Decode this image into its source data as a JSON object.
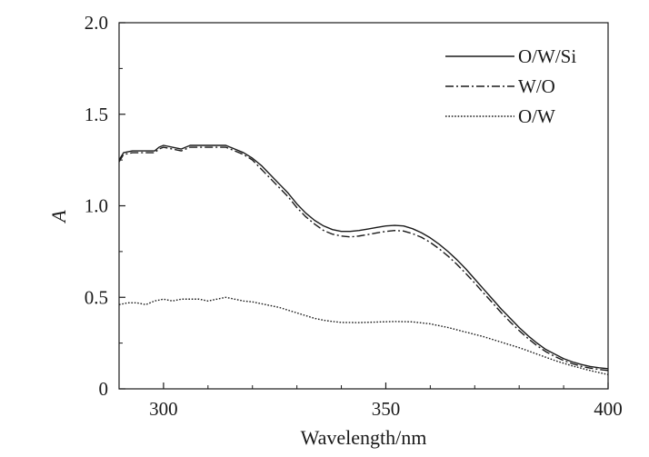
{
  "chart_data": {
    "type": "line",
    "title": "",
    "xlabel": "Wavelength/nm",
    "ylabel": "A",
    "xlim": [
      290,
      400
    ],
    "ylim": [
      0,
      2.0
    ],
    "xticks": [
      300,
      350,
      400
    ],
    "xtick_labels": [
      "300",
      "350",
      "400"
    ],
    "yticks": [
      0,
      0.5,
      1.0,
      1.5,
      2.0
    ],
    "ytick_labels": [
      "0",
      "0.5",
      "1.0",
      "1.5",
      "2.0"
    ],
    "grid": false,
    "legend_position": "top-right",
    "series": [
      {
        "name": "O/W/Si",
        "color": "#1a1a1a",
        "dash": "solid",
        "points": [
          [
            290,
            1.25
          ],
          [
            291,
            1.29
          ],
          [
            293,
            1.3
          ],
          [
            296,
            1.3
          ],
          [
            298,
            1.3
          ],
          [
            299,
            1.32
          ],
          [
            300,
            1.33
          ],
          [
            302,
            1.32
          ],
          [
            304,
            1.31
          ],
          [
            306,
            1.33
          ],
          [
            308,
            1.33
          ],
          [
            310,
            1.33
          ],
          [
            312,
            1.33
          ],
          [
            314,
            1.33
          ],
          [
            316,
            1.31
          ],
          [
            318,
            1.29
          ],
          [
            320,
            1.26
          ],
          [
            322,
            1.22
          ],
          [
            324,
            1.17
          ],
          [
            326,
            1.12
          ],
          [
            328,
            1.07
          ],
          [
            330,
            1.01
          ],
          [
            332,
            0.96
          ],
          [
            334,
            0.92
          ],
          [
            336,
            0.89
          ],
          [
            338,
            0.87
          ],
          [
            340,
            0.86
          ],
          [
            342,
            0.86
          ],
          [
            344,
            0.865
          ],
          [
            346,
            0.873
          ],
          [
            348,
            0.882
          ],
          [
            350,
            0.89
          ],
          [
            352,
            0.893
          ],
          [
            354,
            0.89
          ],
          [
            356,
            0.875
          ],
          [
            358,
            0.853
          ],
          [
            360,
            0.825
          ],
          [
            362,
            0.79
          ],
          [
            364,
            0.75
          ],
          [
            366,
            0.705
          ],
          [
            368,
            0.655
          ],
          [
            370,
            0.6
          ],
          [
            372,
            0.545
          ],
          [
            374,
            0.49
          ],
          [
            376,
            0.435
          ],
          [
            378,
            0.385
          ],
          [
            380,
            0.335
          ],
          [
            382,
            0.29
          ],
          [
            384,
            0.25
          ],
          [
            386,
            0.215
          ],
          [
            388,
            0.19
          ],
          [
            390,
            0.165
          ],
          [
            392,
            0.147
          ],
          [
            394,
            0.133
          ],
          [
            396,
            0.122
          ],
          [
            398,
            0.115
          ],
          [
            400,
            0.11
          ]
        ]
      },
      {
        "name": "W/O",
        "color": "#1a1a1a",
        "dash": "dashdot",
        "points": [
          [
            290,
            1.24
          ],
          [
            291,
            1.28
          ],
          [
            293,
            1.29
          ],
          [
            296,
            1.29
          ],
          [
            298,
            1.29
          ],
          [
            299,
            1.31
          ],
          [
            300,
            1.32
          ],
          [
            302,
            1.31
          ],
          [
            304,
            1.3
          ],
          [
            306,
            1.32
          ],
          [
            308,
            1.32
          ],
          [
            310,
            1.32
          ],
          [
            312,
            1.32
          ],
          [
            314,
            1.32
          ],
          [
            316,
            1.3
          ],
          [
            318,
            1.28
          ],
          [
            320,
            1.25
          ],
          [
            322,
            1.2
          ],
          [
            324,
            1.15
          ],
          [
            326,
            1.1
          ],
          [
            328,
            1.05
          ],
          [
            330,
            0.99
          ],
          [
            332,
            0.94
          ],
          [
            334,
            0.9
          ],
          [
            336,
            0.865
          ],
          [
            338,
            0.845
          ],
          [
            340,
            0.835
          ],
          [
            342,
            0.83
          ],
          [
            344,
            0.835
          ],
          [
            346,
            0.843
          ],
          [
            348,
            0.852
          ],
          [
            350,
            0.86
          ],
          [
            352,
            0.865
          ],
          [
            354,
            0.862
          ],
          [
            356,
            0.848
          ],
          [
            358,
            0.828
          ],
          [
            360,
            0.8
          ],
          [
            362,
            0.765
          ],
          [
            364,
            0.725
          ],
          [
            366,
            0.68
          ],
          [
            368,
            0.63
          ],
          [
            370,
            0.578
          ],
          [
            372,
            0.523
          ],
          [
            374,
            0.47
          ],
          [
            376,
            0.415
          ],
          [
            378,
            0.365
          ],
          [
            380,
            0.318
          ],
          [
            382,
            0.275
          ],
          [
            384,
            0.236
          ],
          [
            386,
            0.203
          ],
          [
            388,
            0.177
          ],
          [
            390,
            0.155
          ],
          [
            392,
            0.137
          ],
          [
            394,
            0.123
          ],
          [
            396,
            0.113
          ],
          [
            398,
            0.106
          ],
          [
            400,
            0.1
          ]
        ]
      },
      {
        "name": "O/W",
        "color": "#1a1a1a",
        "dash": "dotted",
        "points": [
          [
            290,
            0.46
          ],
          [
            292,
            0.47
          ],
          [
            294,
            0.47
          ],
          [
            296,
            0.46
          ],
          [
            298,
            0.48
          ],
          [
            300,
            0.49
          ],
          [
            302,
            0.48
          ],
          [
            304,
            0.49
          ],
          [
            306,
            0.49
          ],
          [
            308,
            0.49
          ],
          [
            310,
            0.48
          ],
          [
            312,
            0.49
          ],
          [
            314,
            0.5
          ],
          [
            316,
            0.49
          ],
          [
            318,
            0.48
          ],
          [
            320,
            0.475
          ],
          [
            322,
            0.465
          ],
          [
            324,
            0.455
          ],
          [
            326,
            0.445
          ],
          [
            328,
            0.43
          ],
          [
            330,
            0.415
          ],
          [
            332,
            0.4
          ],
          [
            334,
            0.385
          ],
          [
            336,
            0.375
          ],
          [
            338,
            0.368
          ],
          [
            340,
            0.363
          ],
          [
            344,
            0.362
          ],
          [
            348,
            0.365
          ],
          [
            352,
            0.368
          ],
          [
            356,
            0.366
          ],
          [
            360,
            0.355
          ],
          [
            364,
            0.335
          ],
          [
            368,
            0.31
          ],
          [
            372,
            0.285
          ],
          [
            376,
            0.255
          ],
          [
            380,
            0.225
          ],
          [
            384,
            0.19
          ],
          [
            388,
            0.155
          ],
          [
            392,
            0.125
          ],
          [
            396,
            0.1
          ],
          [
            400,
            0.078
          ]
        ]
      }
    ]
  }
}
